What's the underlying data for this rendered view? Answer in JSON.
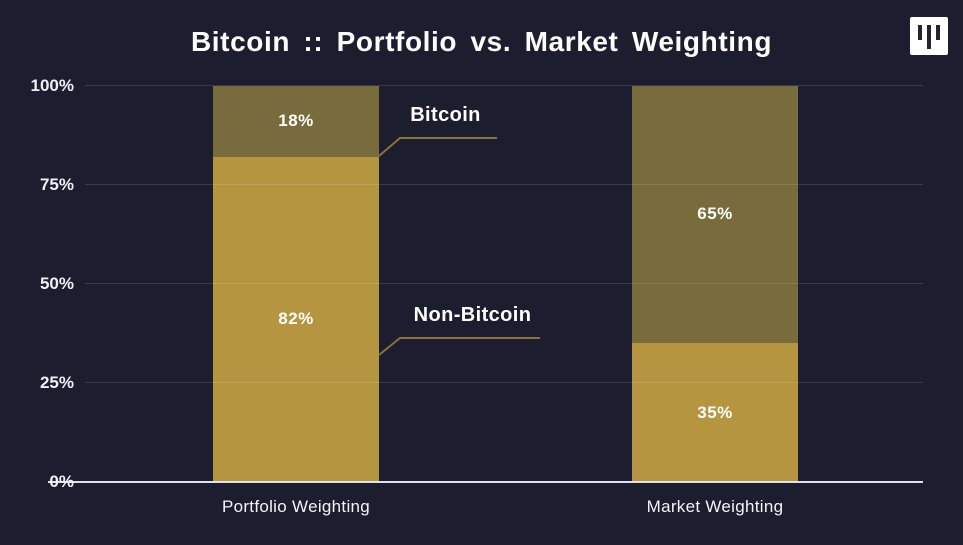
{
  "header": {
    "title": "Bitcoin :: Portfolio vs. Market Weighting",
    "logo": "three-vertical-bars-mark"
  },
  "chart_data": {
    "type": "bar",
    "stacked": true,
    "title": "Bitcoin :: Portfolio vs. Market Weighting",
    "xlabel": "",
    "ylabel": "",
    "categories": [
      "Portfolio Weighting",
      "Market Weighting"
    ],
    "series": [
      {
        "name": "Non-Bitcoin",
        "values": [
          82,
          35
        ],
        "labels": [
          "82%",
          "35%"
        ],
        "color": "#b59540"
      },
      {
        "name": "Bitcoin",
        "values": [
          18,
          65
        ],
        "labels": [
          "18%",
          "65%"
        ],
        "color": "#786b3c"
      }
    ],
    "ylim": [
      0,
      100
    ],
    "yticks": [
      0,
      25,
      50,
      75,
      100
    ],
    "ytick_labels": [
      "0%",
      "25%",
      "50%",
      "75%",
      "100%"
    ],
    "value_unit": "%",
    "grid": true,
    "legend_position": "inline-annotations"
  },
  "annotations": [
    {
      "label": "Bitcoin",
      "series": "Bitcoin"
    },
    {
      "label": "Non-Bitcoin",
      "series": "Non-Bitcoin"
    }
  ],
  "colors": {
    "background": "#1c1d2e",
    "bitcoin_segment": "#786b3c",
    "non_bitcoin_segment": "#b59540",
    "connector": "#8a7334",
    "baseline": "#dfe2ea",
    "gridline": "rgba(230,233,240,0.14)",
    "text": "#f5f6f8",
    "logo_bg": "#ffffff",
    "logo_bars": "#23242f"
  }
}
